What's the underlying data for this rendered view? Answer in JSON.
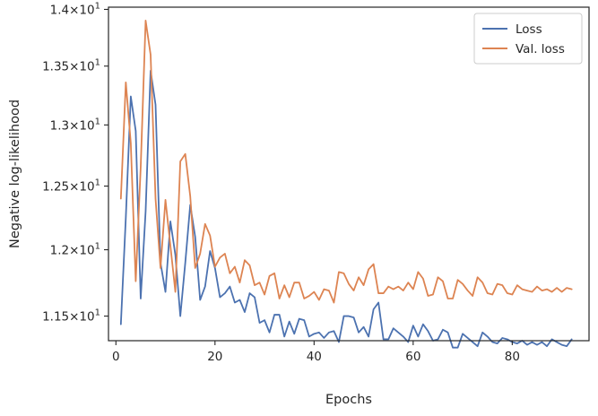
{
  "chart_data": {
    "type": "line",
    "xlabel": "Epochs",
    "ylabel": "Negative log-likelihood",
    "xlim": [
      -1.5,
      95.5
    ],
    "ylim": [
      11.32,
      14.02
    ],
    "y_scale": "log",
    "grid": false,
    "legend_position": "top-right",
    "x_ticks": [
      {
        "value": 0,
        "label": "0"
      },
      {
        "value": 20,
        "label": "20"
      },
      {
        "value": 40,
        "label": "40"
      },
      {
        "value": 60,
        "label": "60"
      },
      {
        "value": 80,
        "label": "80"
      }
    ],
    "y_ticks": [
      {
        "value": 11.5,
        "mantissa": "1.15",
        "exp": "1"
      },
      {
        "value": 12.0,
        "mantissa": "1.2",
        "exp": "1"
      },
      {
        "value": 12.5,
        "mantissa": "1.25",
        "exp": "1"
      },
      {
        "value": 13.0,
        "mantissa": "1.3",
        "exp": "1"
      },
      {
        "value": 13.5,
        "mantissa": "1.35",
        "exp": "1"
      },
      {
        "value": 14.0,
        "mantissa": "1.4",
        "exp": "1"
      }
    ],
    "x": [
      1,
      2,
      3,
      4,
      5,
      6,
      7,
      8,
      9,
      10,
      11,
      12,
      13,
      14,
      15,
      16,
      17,
      18,
      19,
      20,
      21,
      22,
      23,
      24,
      25,
      26,
      27,
      28,
      29,
      30,
      31,
      32,
      33,
      34,
      35,
      36,
      37,
      38,
      39,
      40,
      41,
      42,
      43,
      44,
      45,
      46,
      47,
      48,
      49,
      50,
      51,
      52,
      53,
      54,
      55,
      56,
      57,
      58,
      59,
      60,
      61,
      62,
      63,
      64,
      65,
      66,
      67,
      68,
      69,
      70,
      71,
      72,
      73,
      74,
      75,
      76,
      77,
      78,
      79,
      80,
      81,
      82,
      83,
      84,
      85,
      86,
      87,
      88,
      89,
      90,
      91,
      92
    ],
    "series": [
      {
        "name": "Loss",
        "color": "#4c72b0",
        "values": [
          11.44,
          12.25,
          13.24,
          12.95,
          11.63,
          12.3,
          13.46,
          13.17,
          11.9,
          11.68,
          12.22,
          11.96,
          11.5,
          11.9,
          12.35,
          12.1,
          11.62,
          11.72,
          11.99,
          11.86,
          11.64,
          11.67,
          11.72,
          11.6,
          11.62,
          11.53,
          11.67,
          11.64,
          11.45,
          11.47,
          11.38,
          11.51,
          11.51,
          11.35,
          11.46,
          11.37,
          11.48,
          11.47,
          11.35,
          11.37,
          11.38,
          11.34,
          11.38,
          11.39,
          11.31,
          11.5,
          11.5,
          11.49,
          11.38,
          11.42,
          11.35,
          11.55,
          11.6,
          11.33,
          11.33,
          11.41,
          11.38,
          11.35,
          11.31,
          11.43,
          11.35,
          11.44,
          11.39,
          11.32,
          11.33,
          11.4,
          11.38,
          11.27,
          11.27,
          11.37,
          11.34,
          11.31,
          11.28,
          11.38,
          11.35,
          11.31,
          11.3,
          11.34,
          11.33,
          11.31,
          11.3,
          11.32,
          11.29,
          11.31,
          11.29,
          11.31,
          11.28,
          11.33,
          11.31,
          11.29,
          11.28,
          11.33
        ]
      },
      {
        "name": "Val. loss",
        "color": "#dd8452",
        "values": [
          12.4,
          13.36,
          12.85,
          11.76,
          12.65,
          13.9,
          13.6,
          12.4,
          11.86,
          12.39,
          12.03,
          11.68,
          12.7,
          12.76,
          12.42,
          11.86,
          11.97,
          12.2,
          12.11,
          11.87,
          11.94,
          11.97,
          11.82,
          11.87,
          11.75,
          11.92,
          11.88,
          11.73,
          11.75,
          11.66,
          11.8,
          11.82,
          11.63,
          11.73,
          11.64,
          11.75,
          11.75,
          11.63,
          11.65,
          11.68,
          11.62,
          11.7,
          11.69,
          11.6,
          11.83,
          11.82,
          11.74,
          11.69,
          11.79,
          11.73,
          11.85,
          11.89,
          11.67,
          11.67,
          11.72,
          11.7,
          11.72,
          11.69,
          11.75,
          11.7,
          11.83,
          11.78,
          11.65,
          11.66,
          11.79,
          11.76,
          11.63,
          11.63,
          11.77,
          11.74,
          11.69,
          11.65,
          11.79,
          11.75,
          11.67,
          11.66,
          11.74,
          11.73,
          11.67,
          11.66,
          11.73,
          11.7,
          11.69,
          11.68,
          11.72,
          11.69,
          11.7,
          11.68,
          11.71,
          11.68,
          11.71,
          11.7
        ]
      }
    ]
  }
}
